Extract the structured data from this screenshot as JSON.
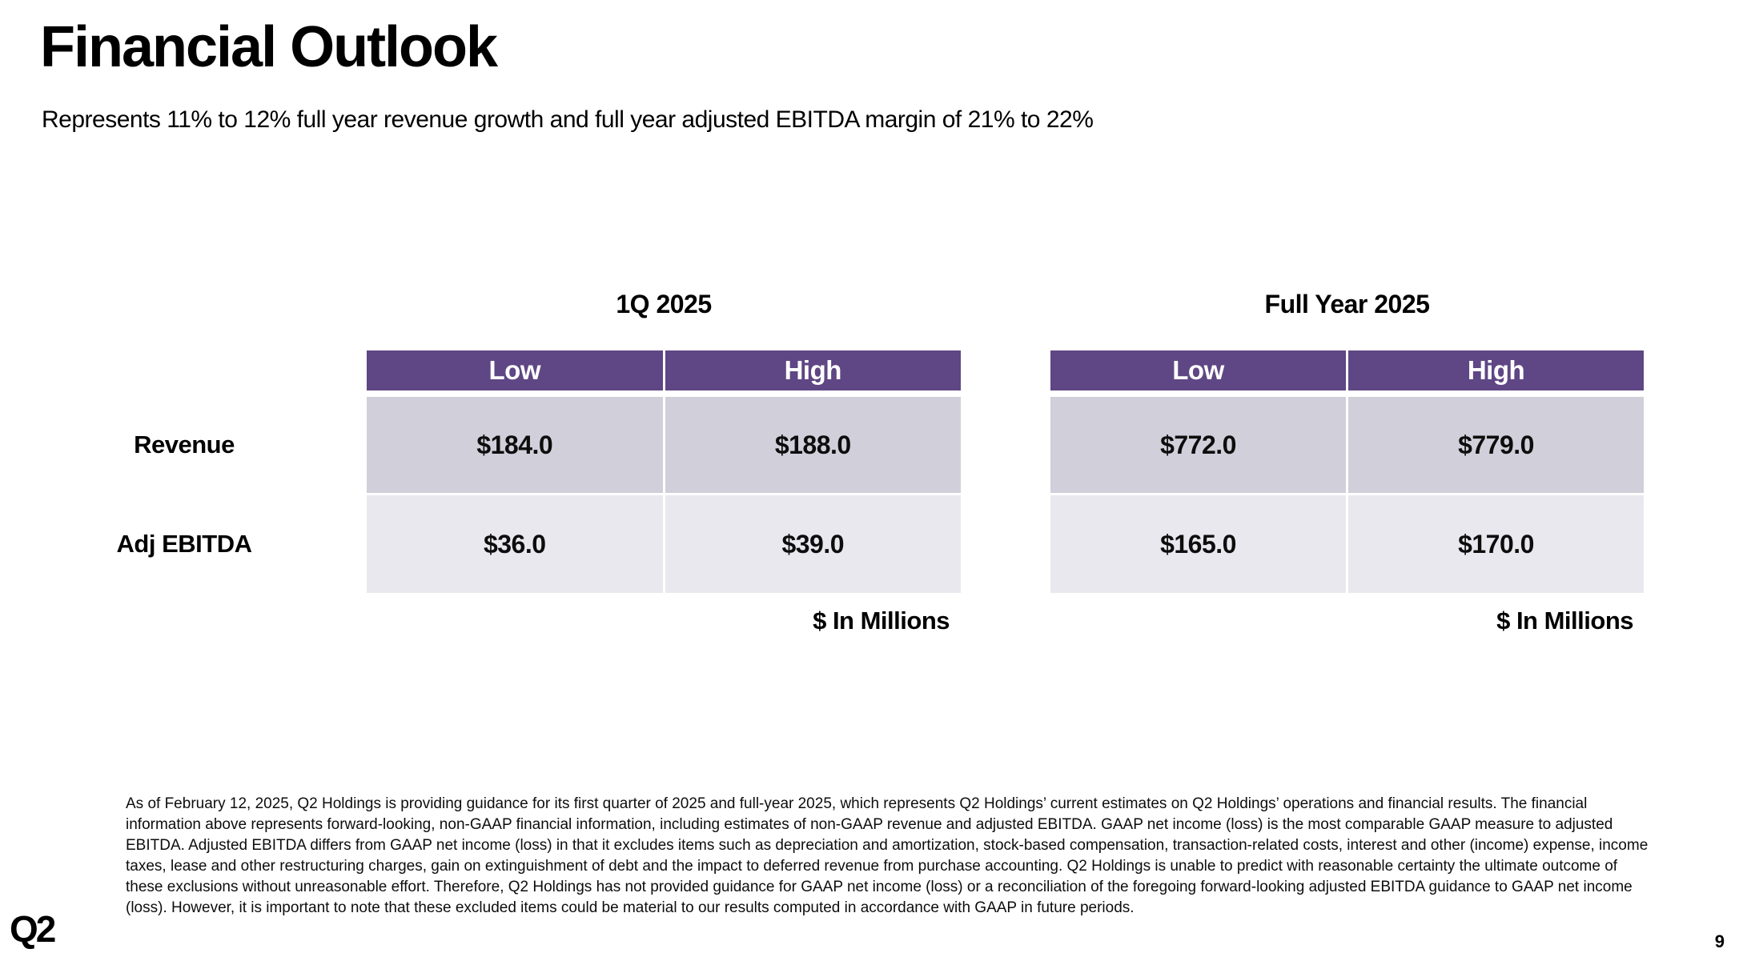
{
  "slide": {
    "title": "Financial Outlook",
    "subtitle": "Represents 11% to 12% full year revenue growth and full year adjusted EBITDA margin of 21% to 22%",
    "logo_text": "Q2",
    "page_number": "9"
  },
  "colors": {
    "header_purple": "#5F4684",
    "row_dark": "#D1CFDA",
    "row_light": "#E9E8EE"
  },
  "row_labels": [
    "Revenue",
    "Adj EBITDA"
  ],
  "tables": [
    {
      "title": "1Q 2025",
      "columns": [
        "Low",
        "High"
      ],
      "rows": [
        [
          "$184.0",
          "$188.0"
        ],
        [
          "$36.0",
          "$39.0"
        ]
      ],
      "footnote": "$ In Millions"
    },
    {
      "title": "Full Year 2025",
      "columns": [
        "Low",
        "High"
      ],
      "rows": [
        [
          "$772.0",
          "$779.0"
        ],
        [
          "$165.0",
          "$170.0"
        ]
      ],
      "footnote": "$ In Millions"
    }
  ],
  "disclaimer": "As of February 12, 2025, Q2 Holdings is providing guidance for its first quarter of 2025 and full-year 2025, which represents Q2 Holdings’ current estimates on Q2 Holdings’ operations and financial results. The financial information above represents forward-looking, non-GAAP financial information, including estimates of non-GAAP revenue and adjusted EBITDA. GAAP net income (loss) is the most comparable GAAP measure to adjusted EBITDA. Adjusted EBITDA differs from GAAP net income (loss) in that it excludes items such as depreciation and amortization, stock-based compensation, transaction-related costs, interest and other (income) expense, income taxes, lease and other restructuring charges, gain on extinguishment of debt and the impact to deferred revenue from purchase accounting. Q2 Holdings is unable to predict with reasonable certainty the ultimate outcome of these exclusions without unreasonable effort. Therefore, Q2 Holdings has not provided guidance for GAAP net income (loss) or a reconciliation of the foregoing forward-looking adjusted EBITDA guidance to GAAP net income (loss). However, it is important to note that these excluded items could be material to our results computed in accordance with GAAP in future periods."
}
